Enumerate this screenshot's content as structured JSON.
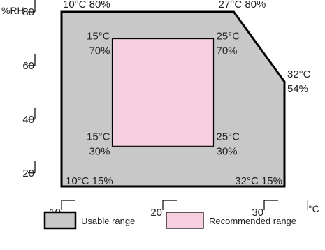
{
  "chart_data": {
    "type": "area",
    "x_unit": "°C",
    "y_unit": "%RH",
    "xlim": [
      8,
      35
    ],
    "ylim": [
      15,
      85
    ],
    "x_ticks": [
      10,
      20,
      30
    ],
    "y_ticks": [
      20,
      40,
      60,
      80
    ],
    "grid": false,
    "legend_position": "bottom",
    "series": [
      {
        "name": "Usable range",
        "color": "#c8c8c8",
        "edge_color": "#000000",
        "points": [
          [
            10,
            15
          ],
          [
            10,
            80
          ],
          [
            27,
            80
          ],
          [
            32,
            54
          ],
          [
            32,
            15
          ]
        ]
      },
      {
        "name": "Recommended range",
        "color": "#f6cfe0",
        "edge_color": "#000000",
        "points": [
          [
            15,
            30
          ],
          [
            15,
            70
          ],
          [
            25,
            70
          ],
          [
            25,
            30
          ]
        ]
      }
    ],
    "annotations": [
      {
        "lines": [
          "10°C 80%"
        ],
        "x": 10,
        "y": 80,
        "pos": "above-right"
      },
      {
        "lines": [
          "27°C 80%"
        ],
        "x": 27,
        "y": 80,
        "pos": "above"
      },
      {
        "lines": [
          "32°C",
          "54%"
        ],
        "x": 32,
        "y": 54,
        "pos": "right"
      },
      {
        "lines": [
          "10°C 15%"
        ],
        "x": 10,
        "y": 15,
        "pos": "inside-top-right"
      },
      {
        "lines": [
          "32°C 15%"
        ],
        "x": 32,
        "y": 15,
        "pos": "inside-top-left"
      },
      {
        "lines": [
          "15°C",
          "70%"
        ],
        "x": 15,
        "y": 70,
        "pos": "outside-top-left"
      },
      {
        "lines": [
          "25°C",
          "70%"
        ],
        "x": 25,
        "y": 70,
        "pos": "outside-top-right"
      },
      {
        "lines": [
          "15°C",
          "30%"
        ],
        "x": 15,
        "y": 30,
        "pos": "outside-bottom-left"
      },
      {
        "lines": [
          "25°C",
          "30%"
        ],
        "x": 25,
        "y": 30,
        "pos": "outside-bottom-right"
      }
    ]
  }
}
